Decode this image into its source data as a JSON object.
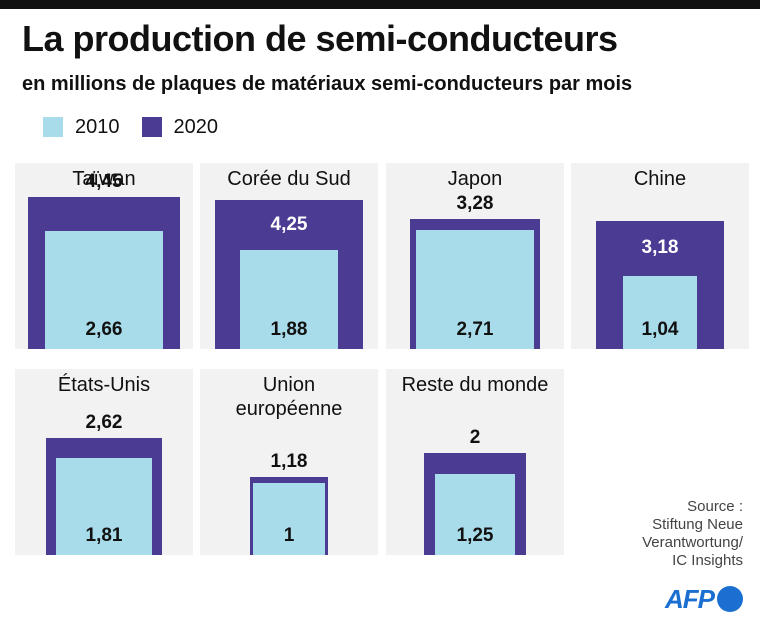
{
  "title": "La production de semi-conducteurs",
  "subtitle": "en millions de plaques de matériaux semi-conducteurs par mois",
  "legend": [
    {
      "label": "2010",
      "color": "#a9dcea"
    },
    {
      "label": "2020",
      "color": "#4b3b93"
    }
  ],
  "chart_data": {
    "type": "nested-square",
    "title": "La production de semi-conducteurs",
    "subtitle": "en millions de plaques de matériaux semi-conducteurs par mois",
    "series": [
      {
        "name": "2010",
        "values": [
          2.66,
          1.88,
          2.71,
          1.04,
          1.81,
          1,
          1.25
        ]
      },
      {
        "name": "2020",
        "values": [
          4.45,
          4.25,
          3.28,
          3.18,
          2.62,
          1.18,
          2
        ]
      }
    ],
    "categories": [
      "Taïwan",
      "Corée du Sud",
      "Japon",
      "Chine",
      "États-Unis",
      "Union européenne",
      "Reste du monde"
    ],
    "panels": [
      {
        "region": "Taïwan",
        "v2010": 2.66,
        "v2020": 4.45,
        "label2010": "2,66",
        "label2020": "4,45"
      },
      {
        "region": "Corée du Sud",
        "v2010": 1.88,
        "v2020": 4.25,
        "label2010": "1,88",
        "label2020": "4,25"
      },
      {
        "region": "Japon",
        "v2010": 2.71,
        "v2020": 3.28,
        "label2010": "2,71",
        "label2020": "3,28"
      },
      {
        "region": "Chine",
        "v2010": 1.04,
        "v2020": 3.18,
        "label2010": "1,04",
        "label2020": "3,18"
      },
      {
        "region": "États-Unis",
        "v2010": 1.81,
        "v2020": 2.62,
        "label2010": "1,81",
        "label2020": "2,62"
      },
      {
        "region": "Union\neuropéenne",
        "v2010": 1,
        "v2020": 1.18,
        "label2010": "1",
        "label2020": "1,18"
      },
      {
        "region": "Reste du monde",
        "v2010": 1.25,
        "v2020": 2,
        "label2010": "1,25",
        "label2020": "2"
      }
    ]
  },
  "source": {
    "line1": "Source :",
    "line2": "Stiftung Neue",
    "line3": "Verantwortung/",
    "line4": "IC Insights"
  },
  "logo": {
    "text": "AFP"
  }
}
